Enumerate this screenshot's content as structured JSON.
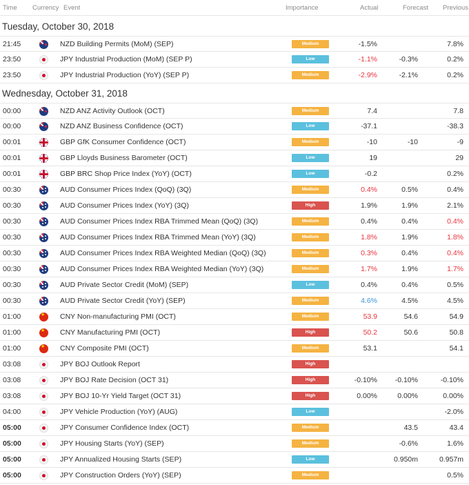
{
  "columns": {
    "time": "Time",
    "currency": "Currency",
    "event": "Event",
    "importance": "Importance",
    "actual": "Actual",
    "forecast": "Forecast",
    "previous": "Previous"
  },
  "importance_colors": {
    "Medium": "#f5b342",
    "Low": "#5bc0de",
    "High": "#d9534f"
  },
  "value_colors": {
    "red": "#e8333c",
    "blue": "#3a93d9"
  },
  "days": [
    {
      "date": "Tuesday, October 30, 2018",
      "events": [
        {
          "time": "21:45",
          "flag": "nz",
          "event": "NZD Building Permits (MoM) (SEP)",
          "importance": "Medium",
          "actual": "-1.5%",
          "forecast": "",
          "previous": "7.8%"
        },
        {
          "time": "23:50",
          "flag": "jp",
          "event": "JPY Industrial Production (MoM) (SEP P)",
          "importance": "Low",
          "actual": "-1.1%",
          "actual_color": "red",
          "forecast": "-0.3%",
          "previous": "0.2%"
        },
        {
          "time": "23:50",
          "flag": "jp",
          "event": "JPY Industrial Production (YoY) (SEP P)",
          "importance": "Medium",
          "actual": "-2.9%",
          "actual_color": "red",
          "forecast": "-2.1%",
          "previous": "0.2%"
        }
      ]
    },
    {
      "date": "Wednesday, October 31, 2018",
      "events": [
        {
          "time": "00:00",
          "flag": "nz",
          "event": "NZD ANZ Activity Outlook (OCT)",
          "importance": "Medium",
          "actual": "7.4",
          "forecast": "",
          "previous": "7.8"
        },
        {
          "time": "00:00",
          "flag": "nz",
          "event": "NZD ANZ Business Confidence (OCT)",
          "importance": "Low",
          "actual": "-37.1",
          "forecast": "",
          "previous": "-38.3"
        },
        {
          "time": "00:01",
          "flag": "gb",
          "event": "GBP GfK Consumer Confidence (OCT)",
          "importance": "Medium",
          "actual": "-10",
          "forecast": "-10",
          "previous": "-9"
        },
        {
          "time": "00:01",
          "flag": "gb",
          "event": "GBP Lloyds Business Barometer (OCT)",
          "importance": "Low",
          "actual": "19",
          "forecast": "",
          "previous": "29"
        },
        {
          "time": "00:01",
          "flag": "gb",
          "event": "GBP BRC Shop Price Index (YoY) (OCT)",
          "importance": "Low",
          "actual": "-0.2",
          "forecast": "",
          "previous": "0.2%"
        },
        {
          "time": "00:30",
          "flag": "au",
          "event": "AUD Consumer Prices Index (QoQ) (3Q)",
          "importance": "Medium",
          "actual": "0.4%",
          "actual_color": "red",
          "forecast": "0.5%",
          "previous": "0.4%"
        },
        {
          "time": "00:30",
          "flag": "au",
          "event": "AUD Consumer Prices Index (YoY) (3Q)",
          "importance": "High",
          "actual": "1.9%",
          "forecast": "1.9%",
          "previous": "2.1%"
        },
        {
          "time": "00:30",
          "flag": "au",
          "event": "AUD Consumer Prices Index RBA Trimmed Mean (QoQ) (3Q)",
          "importance": "Medium",
          "actual": "0.4%",
          "forecast": "0.4%",
          "previous": "0.4%",
          "previous_color": "red"
        },
        {
          "time": "00:30",
          "flag": "au",
          "event": "AUD Consumer Prices Index RBA Trimmed Mean (YoY) (3Q)",
          "importance": "Medium",
          "actual": "1.8%",
          "actual_color": "red",
          "forecast": "1.9%",
          "previous": "1.8%",
          "previous_color": "red"
        },
        {
          "time": "00:30",
          "flag": "au",
          "event": "AUD Consumer Prices Index RBA Weighted Median (QoQ) (3Q)",
          "importance": "Medium",
          "actual": "0.3%",
          "actual_color": "red",
          "forecast": "0.4%",
          "previous": "0.4%",
          "previous_color": "red"
        },
        {
          "time": "00:30",
          "flag": "au",
          "event": "AUD Consumer Prices Index RBA Weighted Median (YoY) (3Q)",
          "importance": "Medium",
          "actual": "1.7%",
          "actual_color": "red",
          "forecast": "1.9%",
          "previous": "1.7%",
          "previous_color": "red"
        },
        {
          "time": "00:30",
          "flag": "au",
          "event": "AUD Private Sector Credit (MoM) (SEP)",
          "importance": "Low",
          "actual": "0.4%",
          "forecast": "0.4%",
          "previous": "0.5%"
        },
        {
          "time": "00:30",
          "flag": "au",
          "event": "AUD Private Sector Credit (YoY) (SEP)",
          "importance": "Medium",
          "actual": "4.6%",
          "actual_color": "blue",
          "forecast": "4.5%",
          "previous": "4.5%"
        },
        {
          "time": "01:00",
          "flag": "cn",
          "event": "CNY Non-manufacturing PMI (OCT)",
          "importance": "Medium",
          "actual": "53.9",
          "actual_color": "red",
          "forecast": "54.6",
          "previous": "54.9"
        },
        {
          "time": "01:00",
          "flag": "cn",
          "event": "CNY Manufacturing PMI (OCT)",
          "importance": "High",
          "actual": "50.2",
          "actual_color": "red",
          "forecast": "50.6",
          "previous": "50.8"
        },
        {
          "time": "01:00",
          "flag": "cn",
          "event": "CNY Composite PMI (OCT)",
          "importance": "Medium",
          "actual": "53.1",
          "forecast": "",
          "previous": "54.1"
        },
        {
          "time": "03:08",
          "flag": "jp",
          "event": "JPY BOJ Outlook Report",
          "importance": "High",
          "actual": "",
          "forecast": "",
          "previous": ""
        },
        {
          "time": "03:08",
          "flag": "jp",
          "event": "JPY BOJ Rate Decision (OCT 31)",
          "importance": "High",
          "actual": "-0.10%",
          "forecast": "-0.10%",
          "previous": "-0.10%"
        },
        {
          "time": "03:08",
          "flag": "jp",
          "event": "JPY BOJ 10-Yr Yield Target (OCT 31)",
          "importance": "High",
          "actual": "0.00%",
          "forecast": "0.00%",
          "previous": "0.00%"
        },
        {
          "time": "04:00",
          "flag": "jp",
          "event": "JPY Vehicle Production (YoY) (AUG)",
          "importance": "Low",
          "actual": "",
          "forecast": "",
          "previous": "-2.0%"
        },
        {
          "time": "05:00",
          "bold": true,
          "flag": "jp",
          "event": "JPY Consumer Confidence Index (OCT)",
          "importance": "Medium",
          "actual": "",
          "forecast": "43.5",
          "previous": "43.4"
        },
        {
          "time": "05:00",
          "bold": true,
          "flag": "jp",
          "event": "JPY Housing Starts (YoY) (SEP)",
          "importance": "Medium",
          "actual": "",
          "forecast": "-0.6%",
          "previous": "1.6%"
        },
        {
          "time": "05:00",
          "bold": true,
          "flag": "jp",
          "event": "JPY Annualized Housing Starts (SEP)",
          "importance": "Low",
          "actual": "",
          "forecast": "0.950m",
          "previous": "0.957m"
        },
        {
          "time": "05:00",
          "bold": true,
          "flag": "jp",
          "event": "JPY Construction Orders (YoY) (SEP)",
          "importance": "Medium",
          "actual": "",
          "forecast": "",
          "previous": "0.5%"
        }
      ]
    }
  ]
}
